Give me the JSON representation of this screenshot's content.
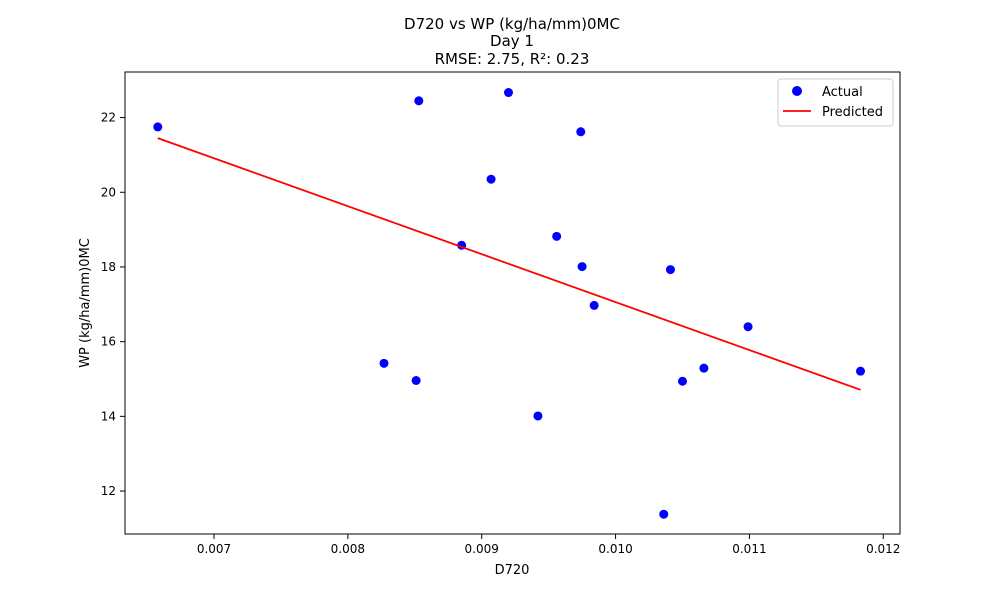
{
  "chart_data": {
    "type": "scatter",
    "title_lines": [
      "D720 vs WP (kg/ha/mm)0MC",
      "Day 1",
      "RMSE: 2.75, R²: 0.23"
    ],
    "xlabel": "D720",
    "ylabel": "WP (kg/ha/mm)0MC",
    "xlim": [
      0.006335,
      0.012125
    ],
    "ylim": [
      10.85,
      23.22
    ],
    "xticks": [
      0.007,
      0.008,
      0.009,
      0.01,
      0.011,
      0.012
    ],
    "xtick_labels": [
      "0.007",
      "0.008",
      "0.009",
      "0.010",
      "0.011",
      "0.012"
    ],
    "yticks": [
      12,
      14,
      16,
      18,
      20,
      22
    ],
    "ytick_labels": [
      "12",
      "14",
      "16",
      "18",
      "20",
      "22"
    ],
    "grid": false,
    "legend_position": "top-right",
    "series": [
      {
        "name": "Actual",
        "kind": "scatter",
        "color": "#0000ff",
        "points": [
          [
            0.00658,
            21.75
          ],
          [
            0.00827,
            15.42
          ],
          [
            0.00851,
            14.96
          ],
          [
            0.00853,
            22.45
          ],
          [
            0.00885,
            18.58
          ],
          [
            0.00907,
            20.35
          ],
          [
            0.0092,
            22.67
          ],
          [
            0.00942,
            14.01
          ],
          [
            0.00956,
            18.82
          ],
          [
            0.00974,
            21.62
          ],
          [
            0.00975,
            18.01
          ],
          [
            0.00984,
            16.97
          ],
          [
            0.01036,
            11.38
          ],
          [
            0.01041,
            17.93
          ],
          [
            0.0105,
            14.94
          ],
          [
            0.01066,
            15.29
          ],
          [
            0.01099,
            16.4
          ],
          [
            0.01183,
            15.21
          ]
        ]
      },
      {
        "name": "Predicted",
        "kind": "line",
        "color": "#ff0000",
        "points": [
          [
            0.00658,
            21.45
          ],
          [
            0.01183,
            14.71
          ]
        ]
      }
    ]
  }
}
